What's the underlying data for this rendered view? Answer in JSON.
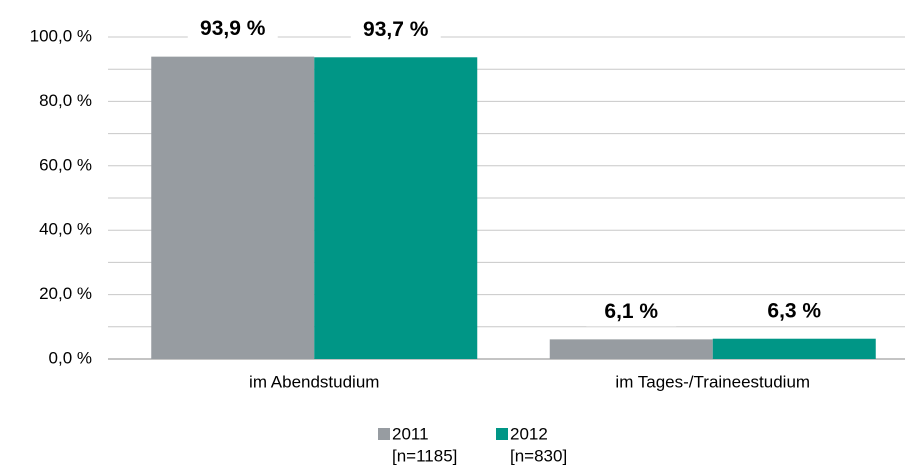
{
  "chart_data": {
    "type": "bar",
    "categories": [
      "im Abendstudium",
      "im Tages-/Traineestudium"
    ],
    "series": [
      {
        "name": "2011",
        "sample": "[n=1185]",
        "color": "#979ca1",
        "values": [
          93.9,
          6.1
        ],
        "value_labels": [
          "93,9 %",
          "6,1 %"
        ]
      },
      {
        "name": "2012",
        "sample": "[n=830]",
        "color": "#009686",
        "values": [
          93.7,
          6.3
        ],
        "value_labels": [
          "93,7 %",
          "6,3 %"
        ]
      }
    ],
    "ylim": [
      0,
      100
    ],
    "yticks": [
      {
        "value": 0,
        "label": "0,0 %"
      },
      {
        "value": 20,
        "label": "20,0 %"
      },
      {
        "value": 40,
        "label": "40,0 %"
      },
      {
        "value": 60,
        "label": "60,0 %"
      },
      {
        "value": 80,
        "label": "80,0 %"
      },
      {
        "value": 100,
        "label": "100,0 %"
      }
    ],
    "minor_yticks": [
      10,
      30,
      50,
      70,
      90
    ],
    "grid": true,
    "legend": "bottom"
  }
}
